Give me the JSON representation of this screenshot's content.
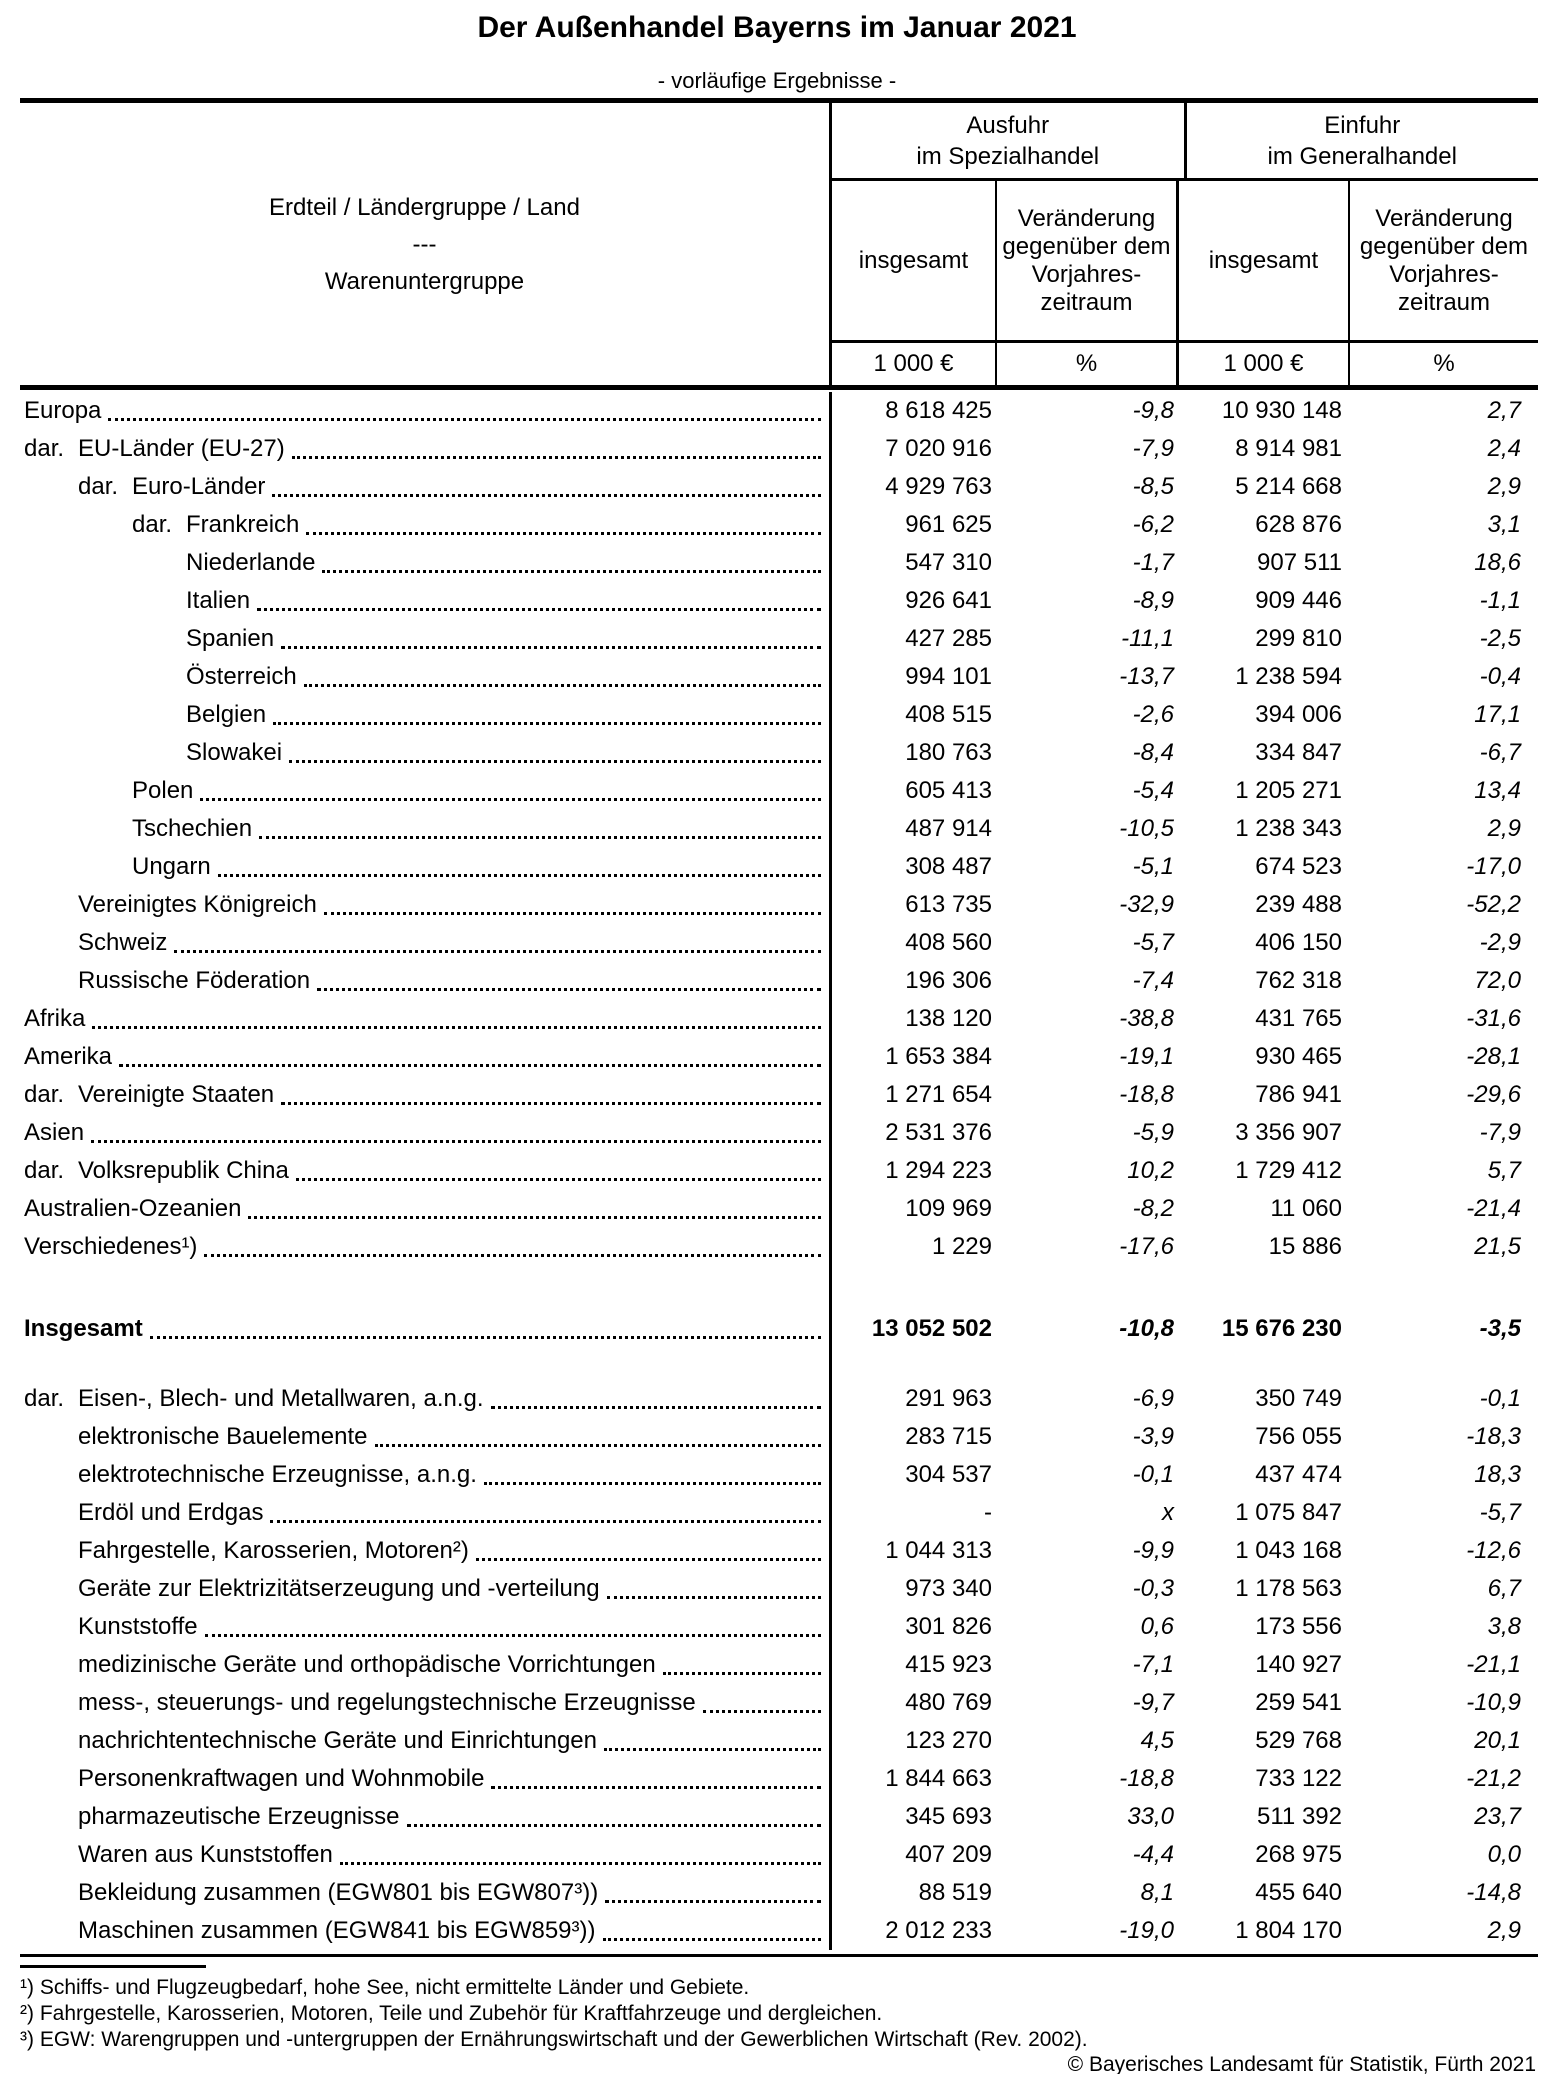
{
  "title": "Der Außenhandel Bayerns im Januar 2021",
  "subtitle": "- vorläufige Ergebnisse -",
  "table": {
    "corner": {
      "line1": "Erdteil / Ländergruppe / Land",
      "line2": "---",
      "line3": "Warenuntergruppe"
    },
    "groups": [
      {
        "line1": "Ausfuhr",
        "line2": "im Spezialhandel"
      },
      {
        "line1": "Einfuhr",
        "line2": "im Generalhandel"
      }
    ],
    "sub": {
      "insgesamt": "insgesamt",
      "change_lines": [
        "Veränderung",
        "gegenüber dem",
        "Vorjahres-",
        "zeitraum"
      ]
    },
    "units": [
      "1 000 €",
      "%",
      "1 000 €",
      "%"
    ],
    "geo_rows": [
      {
        "prefix": "",
        "indent": 0,
        "label": "Europa",
        "values": [
          "8 618 425",
          "-9,8",
          "10 930 148",
          "2,7"
        ]
      },
      {
        "prefix": "dar.",
        "indent": 1,
        "label": "EU-Länder (EU-27)",
        "values": [
          "7 020 916",
          "-7,9",
          "8 914 981",
          "2,4"
        ]
      },
      {
        "prefix": "dar.",
        "indent": 2,
        "label": "Euro-Länder",
        "values": [
          "4 929 763",
          "-8,5",
          "5 214 668",
          "2,9"
        ]
      },
      {
        "prefix": "dar.",
        "indent": 3,
        "label": "Frankreich",
        "values": [
          "961 625",
          "-6,2",
          "628 876",
          "3,1"
        ]
      },
      {
        "prefix": "",
        "indent": 3,
        "label": "Niederlande",
        "values": [
          "547 310",
          "-1,7",
          "907 511",
          "18,6"
        ]
      },
      {
        "prefix": "",
        "indent": 3,
        "label": "Italien",
        "values": [
          "926 641",
          "-8,9",
          "909 446",
          "-1,1"
        ]
      },
      {
        "prefix": "",
        "indent": 3,
        "label": "Spanien",
        "values": [
          "427 285",
          "-11,1",
          "299 810",
          "-2,5"
        ]
      },
      {
        "prefix": "",
        "indent": 3,
        "label": "Österreich",
        "values": [
          "994 101",
          "-13,7",
          "1 238 594",
          "-0,4"
        ]
      },
      {
        "prefix": "",
        "indent": 3,
        "label": "Belgien",
        "values": [
          "408 515",
          "-2,6",
          "394 006",
          "17,1"
        ]
      },
      {
        "prefix": "",
        "indent": 3,
        "label": "Slowakei",
        "values": [
          "180 763",
          "-8,4",
          "334 847",
          "-6,7"
        ]
      },
      {
        "prefix": "",
        "indent": 2,
        "label": "Polen",
        "values": [
          "605 413",
          "-5,4",
          "1 205 271",
          "13,4"
        ]
      },
      {
        "prefix": "",
        "indent": 2,
        "label": "Tschechien",
        "values": [
          "487 914",
          "-10,5",
          "1 238 343",
          "2,9"
        ]
      },
      {
        "prefix": "",
        "indent": 2,
        "label": "Ungarn",
        "values": [
          "308 487",
          "-5,1",
          "674 523",
          "-17,0"
        ]
      },
      {
        "prefix": "",
        "indent": 1,
        "label": "Vereinigtes Königreich",
        "values": [
          "613 735",
          "-32,9",
          "239 488",
          "-52,2"
        ]
      },
      {
        "prefix": "",
        "indent": 1,
        "label": "Schweiz",
        "values": [
          "408 560",
          "-5,7",
          "406 150",
          "-2,9"
        ]
      },
      {
        "prefix": "",
        "indent": 1,
        "label": "Russische Föderation",
        "values": [
          "196 306",
          "-7,4",
          "762 318",
          "72,0"
        ]
      },
      {
        "prefix": "",
        "indent": 0,
        "label": "Afrika",
        "values": [
          "138 120",
          "-38,8",
          "431 765",
          "-31,6"
        ]
      },
      {
        "prefix": "",
        "indent": 0,
        "label": "Amerika",
        "values": [
          "1 653 384",
          "-19,1",
          "930 465",
          "-28,1"
        ]
      },
      {
        "prefix": "dar.",
        "indent": 1,
        "label": "Vereinigte Staaten",
        "values": [
          "1 271 654",
          "-18,8",
          "786 941",
          "-29,6"
        ]
      },
      {
        "prefix": "",
        "indent": 0,
        "label": "Asien",
        "values": [
          "2 531 376",
          "-5,9",
          "3 356 907",
          "-7,9"
        ]
      },
      {
        "prefix": "dar.",
        "indent": 1,
        "label": "Volksrepublik China",
        "values": [
          "1 294 223",
          "10,2",
          "1 729 412",
          "5,7"
        ]
      },
      {
        "prefix": "",
        "indent": 0,
        "label": "Australien-Ozeanien",
        "values": [
          "109 969",
          "-8,2",
          "11 060",
          "-21,4"
        ]
      },
      {
        "prefix": "",
        "indent": 0,
        "label": "Verschiedenes¹)",
        "values": [
          "1 229",
          "-17,6",
          "15 886",
          "21,5"
        ]
      }
    ],
    "total_row": {
      "prefix": "",
      "indent": 0,
      "label": "Insgesamt",
      "values": [
        "13 052 502",
        "-10,8",
        "15 676 230",
        "-3,5"
      ]
    },
    "goods_rows": [
      {
        "prefix": "dar.",
        "indent": 1,
        "label": "Eisen-, Blech- und Metallwaren, a.n.g.",
        "values": [
          "291 963",
          "-6,9",
          "350 749",
          "-0,1"
        ]
      },
      {
        "prefix": "",
        "indent": 1,
        "label": "elektronische Bauelemente",
        "values": [
          "283 715",
          "-3,9",
          "756 055",
          "-18,3"
        ]
      },
      {
        "prefix": "",
        "indent": 1,
        "label": "elektrotechnische Erzeugnisse, a.n.g.",
        "values": [
          "304 537",
          "-0,1",
          "437 474",
          "18,3"
        ]
      },
      {
        "prefix": "",
        "indent": 1,
        "label": "Erdöl und Erdgas",
        "values": [
          "-",
          "x",
          "1 075 847",
          "-5,7"
        ]
      },
      {
        "prefix": "",
        "indent": 1,
        "label": "Fahrgestelle, Karosserien, Motoren²)",
        "values": [
          "1 044 313",
          "-9,9",
          "1 043 168",
          "-12,6"
        ]
      },
      {
        "prefix": "",
        "indent": 1,
        "label": "Geräte zur Elektrizitätserzeugung und -verteilung",
        "values": [
          "973 340",
          "-0,3",
          "1 178 563",
          "6,7"
        ]
      },
      {
        "prefix": "",
        "indent": 1,
        "label": "Kunststoffe",
        "values": [
          "301 826",
          "0,6",
          "173 556",
          "3,8"
        ]
      },
      {
        "prefix": "",
        "indent": 1,
        "label": "medizinische Geräte und orthopädische Vorrichtungen",
        "values": [
          "415 923",
          "-7,1",
          "140 927",
          "-21,1"
        ]
      },
      {
        "prefix": "",
        "indent": 1,
        "label": "mess-, steuerungs- und regelungstechnische Erzeugnisse",
        "values": [
          "480 769",
          "-9,7",
          "259 541",
          "-10,9"
        ]
      },
      {
        "prefix": "",
        "indent": 1,
        "label": "nachrichtentechnische Geräte und Einrichtungen",
        "values": [
          "123 270",
          "4,5",
          "529 768",
          "20,1"
        ]
      },
      {
        "prefix": "",
        "indent": 1,
        "label": "Personenkraftwagen und Wohnmobile",
        "values": [
          "1 844 663",
          "-18,8",
          "733 122",
          "-21,2"
        ]
      },
      {
        "prefix": "",
        "indent": 1,
        "label": "pharmazeutische Erzeugnisse",
        "values": [
          "345 693",
          "33,0",
          "511 392",
          "23,7"
        ]
      },
      {
        "prefix": "",
        "indent": 1,
        "label": "Waren aus Kunststoffen",
        "values": [
          "407 209",
          "-4,4",
          "268 975",
          "0,0"
        ]
      },
      {
        "prefix": "",
        "indent": 1,
        "label": "Bekleidung zusammen (EGW801 bis EGW807³))",
        "values": [
          "88 519",
          "8,1",
          "455 640",
          "-14,8"
        ]
      },
      {
        "prefix": "",
        "indent": 1,
        "label": "Maschinen zusammen (EGW841 bis EGW859³))",
        "values": [
          "2 012 233",
          "-19,0",
          "1 804 170",
          "2,9"
        ]
      }
    ]
  },
  "footnotes": [
    "¹) Schiffs- und Flugzeugbedarf, hohe See, nicht ermittelte Länder und Gebiete.",
    "²) Fahrgestelle, Karosserien, Motoren, Teile und Zubehör für Kraftfahrzeuge und dergleichen.",
    "³) EGW: Warengruppen und -untergruppen der Ernährungswirtschaft und der Gewerblichen Wirtschaft (Rev. 2002)."
  ],
  "copyright": "© Bayerisches Landesamt für Statistik, Fürth 2021"
}
